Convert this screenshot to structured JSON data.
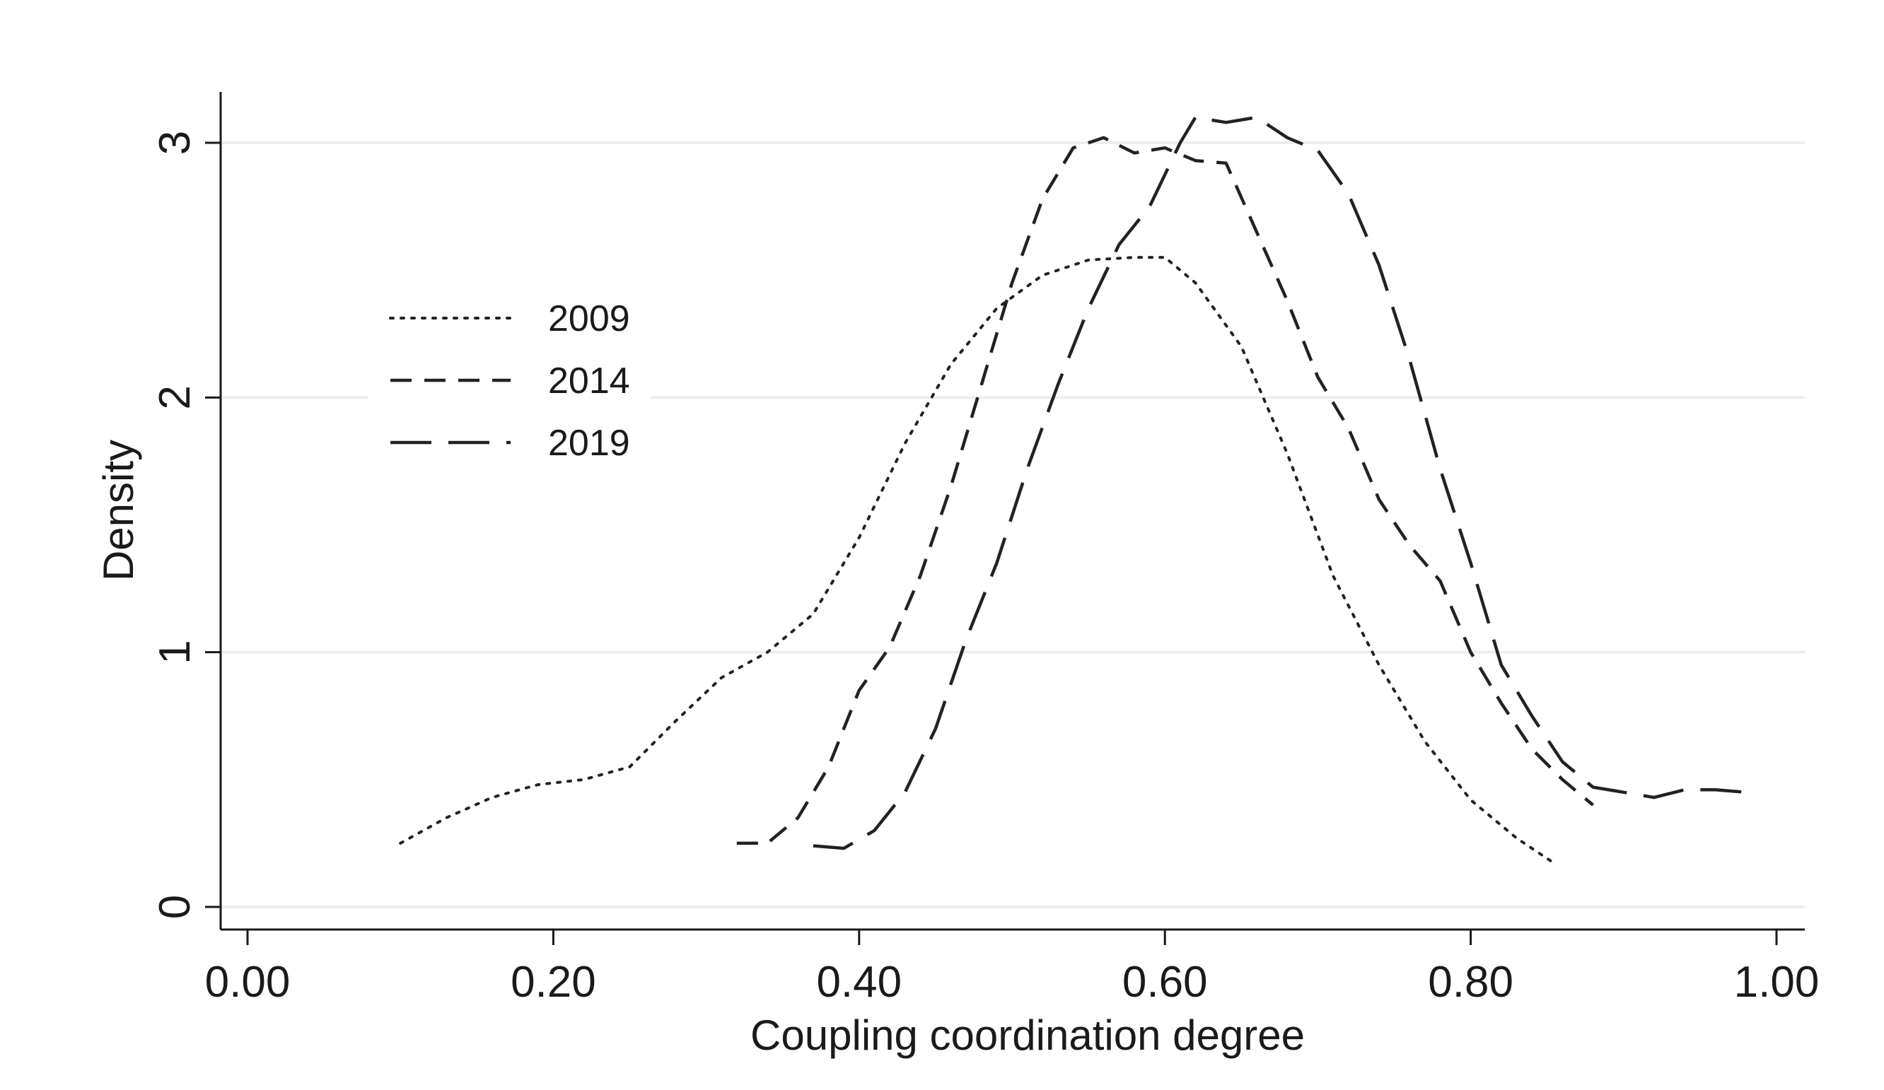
{
  "chart_data": {
    "type": "line",
    "xlabel": "Coupling coordination degree",
    "ylabel": "Density",
    "xlim": [
      0.0,
      1.0
    ],
    "ylim": [
      0,
      3
    ],
    "x_ticks": [
      "0.00",
      "0.20",
      "0.40",
      "0.60",
      "0.80",
      "1.00"
    ],
    "y_ticks": [
      "0",
      "1",
      "2",
      "3"
    ],
    "grid": "horizontal",
    "legend_position": "upper-left",
    "series": [
      {
        "name": "2009",
        "style": "dotted",
        "color": "#222222",
        "x": [
          0.1,
          0.13,
          0.16,
          0.19,
          0.22,
          0.25,
          0.28,
          0.31,
          0.34,
          0.37,
          0.4,
          0.43,
          0.46,
          0.49,
          0.52,
          0.55,
          0.58,
          0.6,
          0.62,
          0.65,
          0.68,
          0.71,
          0.74,
          0.77,
          0.8,
          0.83,
          0.855
        ],
        "y": [
          0.25,
          0.35,
          0.43,
          0.48,
          0.5,
          0.55,
          0.73,
          0.9,
          1.0,
          1.15,
          1.45,
          1.82,
          2.13,
          2.35,
          2.48,
          2.54,
          2.55,
          2.55,
          2.45,
          2.2,
          1.78,
          1.3,
          0.95,
          0.65,
          0.42,
          0.27,
          0.17
        ]
      },
      {
        "name": "2014",
        "style": "dashed",
        "color": "#222222",
        "x": [
          0.32,
          0.34,
          0.36,
          0.38,
          0.4,
          0.42,
          0.44,
          0.46,
          0.48,
          0.5,
          0.52,
          0.54,
          0.56,
          0.58,
          0.6,
          0.62,
          0.64,
          0.66,
          0.68,
          0.7,
          0.72,
          0.74,
          0.76,
          0.78,
          0.8,
          0.82,
          0.84,
          0.86,
          0.88
        ],
        "y": [
          0.25,
          0.25,
          0.35,
          0.55,
          0.85,
          1.02,
          1.3,
          1.65,
          2.05,
          2.45,
          2.78,
          2.98,
          3.02,
          2.96,
          2.98,
          2.93,
          2.92,
          2.65,
          2.38,
          2.08,
          1.88,
          1.6,
          1.42,
          1.28,
          1.0,
          0.8,
          0.62,
          0.5,
          0.4
        ]
      },
      {
        "name": "2019",
        "style": "longdash",
        "color": "#222222",
        "x": [
          0.37,
          0.39,
          0.41,
          0.43,
          0.45,
          0.47,
          0.49,
          0.51,
          0.53,
          0.55,
          0.57,
          0.59,
          0.61,
          0.62,
          0.64,
          0.66,
          0.68,
          0.7,
          0.72,
          0.74,
          0.76,
          0.78,
          0.8,
          0.82,
          0.84,
          0.86,
          0.88,
          0.9,
          0.92,
          0.94,
          0.96,
          0.98
        ],
        "y": [
          0.24,
          0.23,
          0.3,
          0.45,
          0.7,
          1.05,
          1.35,
          1.72,
          2.05,
          2.35,
          2.6,
          2.75,
          3.0,
          3.1,
          3.08,
          3.1,
          3.02,
          2.97,
          2.8,
          2.52,
          2.15,
          1.72,
          1.35,
          0.95,
          0.75,
          0.57,
          0.47,
          0.45,
          0.43,
          0.46,
          0.46,
          0.45
        ]
      }
    ]
  }
}
